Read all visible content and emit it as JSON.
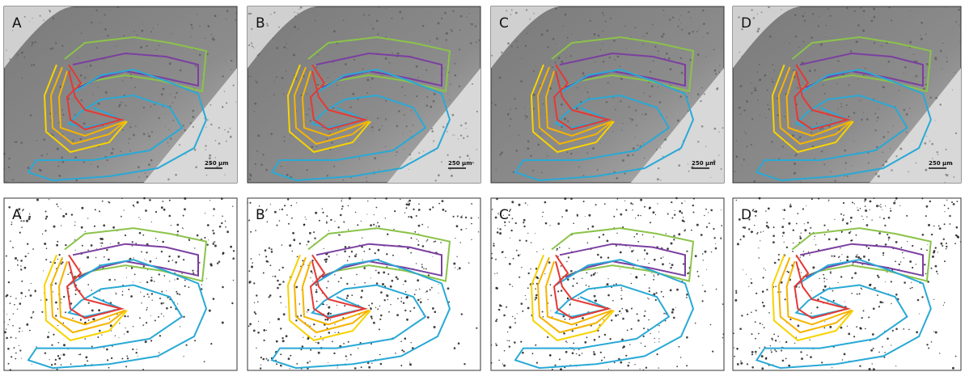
{
  "panels": [
    {
      "label": "A",
      "scale_bar": "250 µm"
    },
    {
      "label": "B",
      "scale_bar": "250 µm"
    },
    {
      "label": "C",
      "scale_bar": "250 µm"
    },
    {
      "label": "D",
      "scale_bar": "250 µm"
    },
    {
      "label": "A′"
    },
    {
      "label": "B′"
    },
    {
      "label": "C′"
    },
    {
      "label": "D′"
    }
  ]
}
